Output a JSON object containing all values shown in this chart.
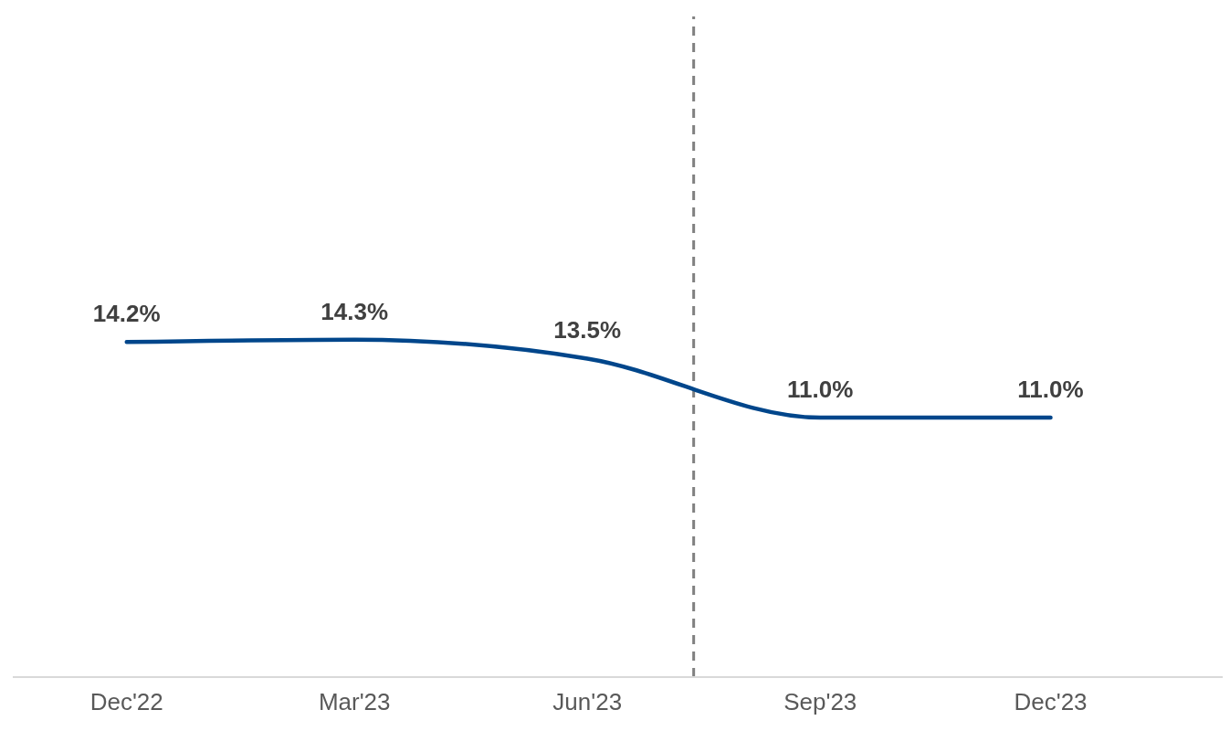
{
  "chart_data": {
    "type": "line",
    "x": [
      "2022-12",
      "2023-03",
      "2023-06",
      "2023-09",
      "2023-12"
    ],
    "series": [
      {
        "color": "#00468b",
        "values": [
          14.2,
          14.3,
          13.5,
          11.0,
          11.0
        ],
        "value_labels": [
          "14.2%",
          "14.3%",
          "13.5%",
          "11.0%",
          "11.0%"
        ]
      }
    ],
    "xlim": [
      "2022-10-17",
      "2024-02-07"
    ],
    "xticks": [
      {
        "value": "2022-12",
        "label": "Dec'22"
      },
      {
        "value": "2023-03",
        "label": "Mar'23"
      },
      {
        "value": "2023-06",
        "label": "Jun'23"
      },
      {
        "value": "2023-09",
        "label": "Sep'23"
      },
      {
        "value": "2023-12",
        "label": "Dec'23"
      }
    ],
    "ylim": [
      0,
      28
    ],
    "tick_labels": "x",
    "ref_lines": [
      {
        "axis": "x",
        "value": "2023-07-13",
        "color": "#808080",
        "line_style": "dashed"
      }
    ],
    "grid": false,
    "marker": "none",
    "line_style": "solid"
  }
}
